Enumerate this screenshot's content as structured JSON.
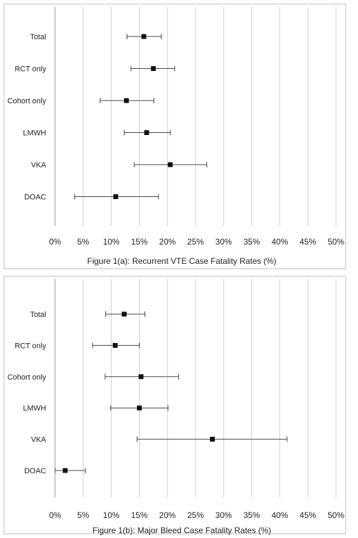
{
  "chart_data": [
    {
      "type": "scatter",
      "title": "Figure 1(a): Recurrent VTE Case Fatality Rates (%)",
      "xlabel": "Figure 1(a): Recurrent VTE Case Fatality Rates (%)",
      "ylabel": "",
      "xlim": [
        0,
        50
      ],
      "x_ticks": [
        "0%",
        "5%",
        "10%",
        "15%",
        "20%",
        "25%",
        "30%",
        "35%",
        "40%",
        "45%",
        "50%"
      ],
      "grid": "vertical",
      "categories": [
        "Total",
        "RCT only",
        "Cohort only",
        "LMWH",
        "VKA",
        "DOAC"
      ],
      "estimates": [
        15.8,
        17.5,
        12.7,
        16.3,
        20.5,
        10.8
      ],
      "lower": [
        12.8,
        13.5,
        8.0,
        12.3,
        14.1,
        3.5
      ],
      "upper": [
        18.9,
        21.3,
        17.6,
        20.5,
        27.0,
        18.4
      ]
    },
    {
      "type": "scatter",
      "title": "Figure 1(b): Major Bleed Case Fatality Rates (%)",
      "xlabel": "Figure 1(b): Major Bleed Case Fatality Rates (%)",
      "ylabel": "",
      "xlim": [
        0,
        50
      ],
      "x_ticks": [
        "0%",
        "5%",
        "10%",
        "15%",
        "20%",
        "25%",
        "30%",
        "35%",
        "40%",
        "45%",
        "50%"
      ],
      "grid": "vertical",
      "categories": [
        "Total",
        "RCT only",
        "Cohort only",
        "LMWH",
        "VKA",
        "DOAC"
      ],
      "estimates": [
        12.3,
        10.7,
        15.3,
        15.0,
        28.0,
        1.8
      ],
      "lower": [
        9.0,
        6.7,
        8.9,
        9.9,
        14.6,
        0.0
      ],
      "upper": [
        16.0,
        15.0,
        22.0,
        20.1,
        41.3,
        5.4
      ]
    }
  ]
}
